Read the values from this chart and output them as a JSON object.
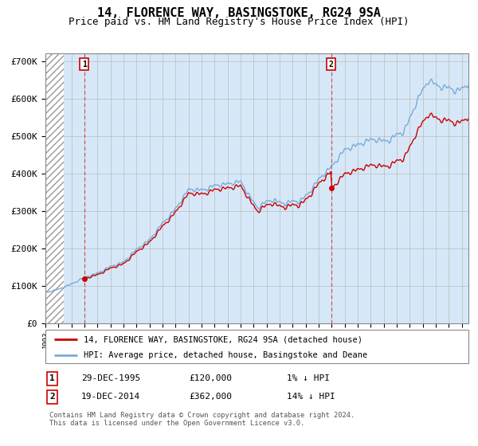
{
  "title": "14, FLORENCE WAY, BASINGSTOKE, RG24 9SA",
  "subtitle": "Price paid vs. HM Land Registry's House Price Index (HPI)",
  "ylim": [
    0,
    720000
  ],
  "yticks": [
    0,
    100000,
    200000,
    300000,
    400000,
    500000,
    600000,
    700000
  ],
  "ytick_labels": [
    "£0",
    "£100K",
    "£200K",
    "£300K",
    "£400K",
    "£500K",
    "£600K",
    "£700K"
  ],
  "sale1_date": 1995.99,
  "sale1_price": 120000,
  "sale2_date": 2014.96,
  "sale2_price": 362000,
  "line1_color": "#cc0000",
  "line2_color": "#7aabda",
  "fill_color": "#d6e8f7",
  "legend1": "14, FLORENCE WAY, BASINGSTOKE, RG24 9SA (detached house)",
  "legend2": "HPI: Average price, detached house, Basingstoke and Deane",
  "table_row1": [
    "1",
    "29-DEC-1995",
    "£120,000",
    "1% ↓ HPI"
  ],
  "table_row2": [
    "2",
    "19-DEC-2014",
    "£362,000",
    "14% ↓ HPI"
  ],
  "footnote": "Contains HM Land Registry data © Crown copyright and database right 2024.\nThis data is licensed under the Open Government Licence v3.0.",
  "grid_color": "#bbbbbb",
  "title_fontsize": 11,
  "subtitle_fontsize": 9,
  "tick_fontsize": 8
}
